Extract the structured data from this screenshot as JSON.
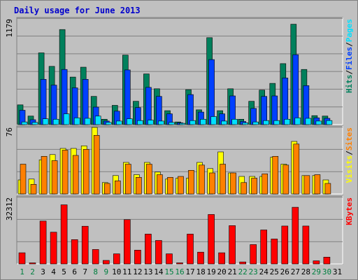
{
  "colors": {
    "background": "#c0c0c0",
    "plot_background": "#c0c0c0",
    "title": "#0000cc",
    "hits": "#00805c",
    "files": "#0040ff",
    "pages": "#00e0ff",
    "visits": "#ffff00",
    "sites": "#ff8000",
    "kbytes": "#ff0000",
    "gridline": "#808080",
    "weekend_day": "#008040",
    "weekday": "#000000"
  },
  "chart_data": {
    "type": "bar",
    "title": "Daily usage for June 2013",
    "days": [
      "1",
      "2",
      "3",
      "4",
      "5",
      "6",
      "7",
      "8",
      "9",
      "10",
      "11",
      "12",
      "13",
      "14",
      "15",
      "16",
      "17",
      "18",
      "19",
      "20",
      "21",
      "22",
      "23",
      "24",
      "25",
      "26",
      "27",
      "28",
      "29",
      "30",
      "31"
    ],
    "weekend_days": [
      "1",
      "2",
      "8",
      "9",
      "15",
      "16",
      "22",
      "23",
      "29",
      "30"
    ],
    "panels": [
      {
        "name": "top",
        "max_label": "1179",
        "ymax": 1179,
        "legend": [
          "Pages",
          "Files",
          "Hits"
        ],
        "series": [
          {
            "name": "Hits",
            "values": [
              220,
              95,
              800,
              650,
              1060,
              530,
              640,
              315,
              60,
              215,
              775,
              260,
              565,
              400,
              155,
              30,
              390,
              165,
              970,
              155,
              400,
              60,
              260,
              385,
              460,
              680,
              1120,
              615,
              100,
              95,
              0
            ]
          },
          {
            "name": "Files",
            "values": [
              160,
              55,
              505,
              440,
              615,
              410,
              505,
              195,
              40,
              150,
              610,
              190,
              415,
              315,
              120,
              20,
              335,
              140,
              725,
              120,
              320,
              35,
              180,
              315,
              320,
              520,
              780,
              435,
              75,
              70,
              0
            ]
          },
          {
            "name": "Pages",
            "values": [
              30,
              25,
              65,
              60,
              120,
              75,
              70,
              95,
              25,
              40,
              65,
              45,
              50,
              40,
              25,
              15,
              45,
              60,
              90,
              40,
              60,
              20,
              30,
              45,
              45,
              60,
              75,
              70,
              40,
              45,
              0
            ]
          }
        ]
      },
      {
        "name": "middle",
        "max_label": "76",
        "ymax": 76,
        "legend": [
          "Sites",
          "Visits"
        ],
        "series": [
          {
            "name": "Visits",
            "values": [
              16,
              17,
              39,
              45,
              52,
              52,
              55,
              76,
              13,
              21,
              36,
              22,
              36,
              25,
              17,
              18,
              18,
              36,
              29,
              48,
              24,
              20,
              20,
              20,
              42,
              34,
              60,
              21,
              21,
              16,
              0
            ]
          },
          {
            "name": "Sites",
            "values": [
              34,
              11,
              43,
              38,
              50,
              44,
              51,
              67,
              12,
              15,
              34,
              19,
              34,
              22,
              19,
              20,
              27,
              33,
              24,
              34,
              24,
              13,
              18,
              23,
              43,
              33,
              57,
              21,
              22,
              12,
              0
            ]
          }
        ]
      },
      {
        "name": "bottom",
        "max_label": "32312",
        "ymax": 32312,
        "legend": [
          "KBytes"
        ],
        "series": [
          {
            "name": "KBytes",
            "values": [
              5400,
              500,
              20800,
              15400,
              28700,
              11800,
              18300,
              7000,
              1700,
              4900,
              21500,
              6700,
              14500,
              11400,
              4900,
              500,
              14500,
              5700,
              24000,
              5400,
              18600,
              950,
              9400,
              16500,
              12100,
              18400,
              27500,
              18400,
              1500,
              3300,
              0
            ]
          }
        ]
      }
    ]
  }
}
